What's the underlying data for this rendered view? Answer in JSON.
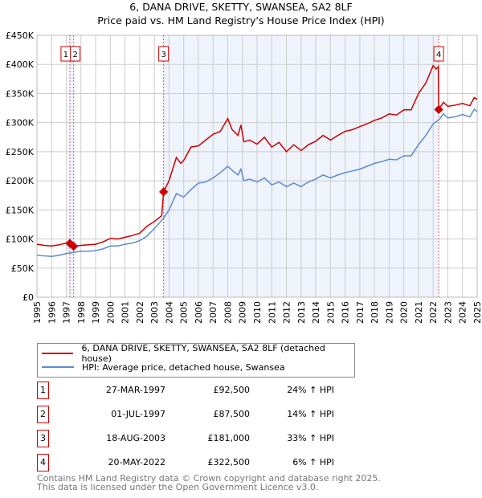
{
  "chart_data": {
    "type": "line",
    "title": "6, DANA DRIVE, SKETTY, SWANSEA, SA2 8LF",
    "subtitle": "Price paid vs. HM Land Registry's House Price Index (HPI)",
    "xlim": [
      1995,
      2025
    ],
    "ylim": [
      0,
      450000
    ],
    "x_ticks": [
      "1995",
      "1996",
      "1997",
      "1998",
      "1999",
      "2000",
      "2001",
      "2002",
      "2003",
      "2004",
      "2005",
      "2006",
      "2007",
      "2008",
      "2009",
      "2010",
      "2011",
      "2012",
      "2013",
      "2014",
      "2015",
      "2016",
      "2017",
      "2018",
      "2019",
      "2020",
      "2021",
      "2022",
      "2023",
      "2024",
      "2025"
    ],
    "y_ticks": [
      {
        "v": 0,
        "label": "£0"
      },
      {
        "v": 50000,
        "label": "£50K"
      },
      {
        "v": 100000,
        "label": "£100K"
      },
      {
        "v": 150000,
        "label": "£150K"
      },
      {
        "v": 200000,
        "label": "£200K"
      },
      {
        "v": 250000,
        "label": "£250K"
      },
      {
        "v": 300000,
        "label": "£300K"
      },
      {
        "v": 350000,
        "label": "£350K"
      },
      {
        "v": 400000,
        "label": "£400K"
      },
      {
        "v": 450000,
        "label": "£450K"
      }
    ],
    "grid": true,
    "series": [
      {
        "name": "6, DANA DRIVE, SKETTY, SWANSEA, SA2 8LF (detached house)",
        "color": "#cc0000",
        "points": [
          [
            1995,
            91
          ],
          [
            1995.5,
            89
          ],
          [
            1996,
            88
          ],
          [
            1996.5,
            90
          ],
          [
            1997,
            93
          ],
          [
            1997.24,
            92.5
          ],
          [
            1997.5,
            87.5
          ],
          [
            1998,
            89
          ],
          [
            1998.5,
            90
          ],
          [
            1999,
            91
          ],
          [
            1999.5,
            95
          ],
          [
            2000,
            101
          ],
          [
            2000.5,
            100
          ],
          [
            2001,
            103
          ],
          [
            2001.5,
            106
          ],
          [
            2002,
            110
          ],
          [
            2002.5,
            122
          ],
          [
            2003,
            130
          ],
          [
            2003.5,
            140
          ],
          [
            2003.63,
            181
          ],
          [
            2004,
            200
          ],
          [
            2004.5,
            240
          ],
          [
            2004.8,
            230
          ],
          [
            2005,
            235
          ],
          [
            2005.5,
            258
          ],
          [
            2006,
            260
          ],
          [
            2006.5,
            270
          ],
          [
            2007,
            280
          ],
          [
            2007.5,
            285
          ],
          [
            2008,
            307
          ],
          [
            2008.3,
            288
          ],
          [
            2008.7,
            278
          ],
          [
            2008.9,
            296
          ],
          [
            2009.1,
            267
          ],
          [
            2009.5,
            270
          ],
          [
            2010,
            263
          ],
          [
            2010.5,
            275
          ],
          [
            2011,
            258
          ],
          [
            2011.5,
            266
          ],
          [
            2012,
            250
          ],
          [
            2012.5,
            262
          ],
          [
            2013,
            252
          ],
          [
            2013.5,
            262
          ],
          [
            2014,
            268
          ],
          [
            2014.5,
            278
          ],
          [
            2015,
            270
          ],
          [
            2015.5,
            278
          ],
          [
            2016,
            285
          ],
          [
            2016.5,
            288
          ],
          [
            2017,
            293
          ],
          [
            2017.5,
            298
          ],
          [
            2018,
            304
          ],
          [
            2018.5,
            308
          ],
          [
            2019,
            315
          ],
          [
            2019.5,
            313
          ],
          [
            2020,
            322
          ],
          [
            2020.5,
            322
          ],
          [
            2021,
            350
          ],
          [
            2021.5,
            368
          ],
          [
            2022,
            398
          ],
          [
            2022.2,
            392
          ],
          [
            2022.35,
            396
          ],
          [
            2022.38,
            322.5
          ],
          [
            2022.7,
            335
          ],
          [
            2023,
            328
          ],
          [
            2023.5,
            330
          ],
          [
            2024,
            333
          ],
          [
            2024.5,
            329
          ],
          [
            2024.8,
            343
          ],
          [
            2025,
            340
          ]
        ]
      },
      {
        "name": "HPI: Average price, detached house, Swansea",
        "color": "#5b8bd0",
        "points": [
          [
            1995,
            72
          ],
          [
            1995.5,
            71
          ],
          [
            1996,
            70
          ],
          [
            1996.5,
            72
          ],
          [
            1997,
            75
          ],
          [
            1997.5,
            77
          ],
          [
            1998,
            79
          ],
          [
            1998.5,
            79
          ],
          [
            1999,
            80
          ],
          [
            1999.5,
            83
          ],
          [
            2000,
            88
          ],
          [
            2000.5,
            88
          ],
          [
            2001,
            91
          ],
          [
            2001.5,
            93
          ],
          [
            2002,
            97
          ],
          [
            2002.5,
            105
          ],
          [
            2003,
            118
          ],
          [
            2003.6,
            135
          ],
          [
            2004,
            150
          ],
          [
            2004.5,
            178
          ],
          [
            2005,
            172
          ],
          [
            2005.5,
            185
          ],
          [
            2006,
            196
          ],
          [
            2006.5,
            198
          ],
          [
            2007,
            205
          ],
          [
            2007.5,
            214
          ],
          [
            2008,
            225
          ],
          [
            2008.3,
            218
          ],
          [
            2008.7,
            210
          ],
          [
            2008.9,
            220
          ],
          [
            2009.1,
            200
          ],
          [
            2009.5,
            203
          ],
          [
            2010,
            198
          ],
          [
            2010.5,
            205
          ],
          [
            2011,
            193
          ],
          [
            2011.5,
            198
          ],
          [
            2012,
            190
          ],
          [
            2012.5,
            196
          ],
          [
            2013,
            190
          ],
          [
            2013.5,
            198
          ],
          [
            2014,
            203
          ],
          [
            2014.5,
            210
          ],
          [
            2015,
            205
          ],
          [
            2015.5,
            210
          ],
          [
            2016,
            214
          ],
          [
            2016.5,
            217
          ],
          [
            2017,
            220
          ],
          [
            2017.5,
            225
          ],
          [
            2018,
            230
          ],
          [
            2018.5,
            233
          ],
          [
            2019,
            237
          ],
          [
            2019.5,
            236
          ],
          [
            2020,
            243
          ],
          [
            2020.5,
            243
          ],
          [
            2021,
            262
          ],
          [
            2021.5,
            278
          ],
          [
            2022,
            298
          ],
          [
            2022.4,
            305
          ],
          [
            2022.7,
            315
          ],
          [
            2023,
            308
          ],
          [
            2023.5,
            310
          ],
          [
            2024,
            314
          ],
          [
            2024.5,
            310
          ],
          [
            2024.8,
            323
          ],
          [
            2025,
            319
          ]
        ]
      }
    ],
    "y_unit": "thousand GBP",
    "sales": [
      {
        "label": "1",
        "x": 1997.24,
        "y": 92.5
      },
      {
        "label": "2",
        "x": 1997.5,
        "y": 87.5
      },
      {
        "label": "3",
        "x": 2003.63,
        "y": 181
      },
      {
        "label": "4",
        "x": 2022.38,
        "y": 322.5
      }
    ],
    "shaded": [
      [
        1997.24,
        1997.5
      ],
      [
        2003.63,
        2022.38
      ]
    ]
  },
  "table": [
    {
      "n": "1",
      "date": "27-MAR-1997",
      "price": "£92,500",
      "hpi": "24% ↑ HPI"
    },
    {
      "n": "2",
      "date": "01-JUL-1997",
      "price": "£87,500",
      "hpi": "14% ↑ HPI"
    },
    {
      "n": "3",
      "date": "18-AUG-2003",
      "price": "£181,000",
      "hpi": "33% ↑ HPI"
    },
    {
      "n": "4",
      "date": "20-MAY-2022",
      "price": "£322,500",
      "hpi": "6% ↑ HPI"
    }
  ],
  "footer": [
    "Contains HM Land Registry data © Crown copyright and database right 2025.",
    "This data is licensed under the Open Government Licence v3.0."
  ]
}
